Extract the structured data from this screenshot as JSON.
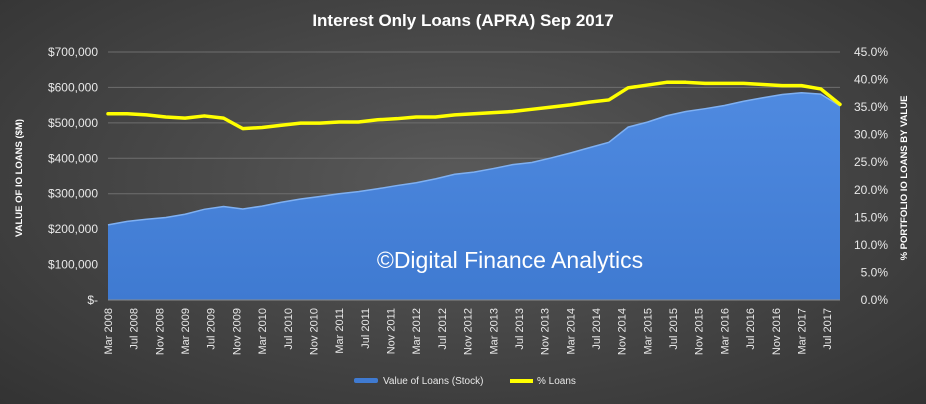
{
  "chart_data": {
    "type": "area+line",
    "title": "Interest Only Loans (APRA) Sep 2017",
    "ylabel_left": "VALUE OF IO LOANS ($M)",
    "ylabel_right": "% PORTFOLIO IO LOANS BY VALUE",
    "ylim_left": [
      0,
      700000
    ],
    "ylim_right": [
      0,
      45
    ],
    "left_ticks": [
      "$-",
      "$100,000",
      "$200,000",
      "$300,000",
      "$400,000",
      "$500,000",
      "$600,000",
      "$700,000"
    ],
    "right_ticks": [
      "0.0%",
      "5.0%",
      "10.0%",
      "15.0%",
      "20.0%",
      "25.0%",
      "30.0%",
      "35.0%",
      "40.0%",
      "45.0%"
    ],
    "x_tick_labels": [
      "Mar 2008",
      "Jul 2008",
      "Nov 2008",
      "Mar 2009",
      "Jul 2009",
      "Nov 2009",
      "Mar 2010",
      "Jul 2010",
      "Nov 2010",
      "Mar 2011",
      "Jul 2011",
      "Nov 2011",
      "Mar 2012",
      "Jul 2012",
      "Nov 2012",
      "Mar 2013",
      "Jul 2013",
      "Nov 2013",
      "Mar 2014",
      "Jul 2014",
      "Nov 2014",
      "Mar 2015",
      "Jul 2015",
      "Nov 2015",
      "Mar 2016",
      "Jul 2016",
      "Nov 2016",
      "Mar 2017",
      "Jul 2017"
    ],
    "x": [
      "2008-03",
      "2008-06",
      "2008-09",
      "2008-12",
      "2009-03",
      "2009-06",
      "2009-09",
      "2009-12",
      "2010-03",
      "2010-06",
      "2010-09",
      "2010-12",
      "2011-03",
      "2011-06",
      "2011-09",
      "2011-12",
      "2012-03",
      "2012-06",
      "2012-09",
      "2012-12",
      "2013-03",
      "2013-06",
      "2013-09",
      "2013-12",
      "2014-03",
      "2014-06",
      "2014-09",
      "2014-12",
      "2015-03",
      "2015-06",
      "2015-09",
      "2015-12",
      "2016-03",
      "2016-06",
      "2016-09",
      "2016-12",
      "2017-03",
      "2017-06",
      "2017-09"
    ],
    "series": [
      {
        "name": "Value of Loans (Stock)",
        "type": "area",
        "axis": "left",
        "color": "#3f7ad1",
        "values": [
          212000,
          222000,
          228000,
          233000,
          242000,
          256000,
          264000,
          257000,
          265000,
          276000,
          285000,
          292000,
          300000,
          306000,
          314000,
          323000,
          331000,
          342000,
          355000,
          361000,
          371000,
          382000,
          388000,
          401000,
          415000,
          430000,
          445000,
          488000,
          502000,
          520000,
          532000,
          540000,
          549000,
          561000,
          571000,
          580000,
          585000,
          581000,
          548000
        ]
      },
      {
        "name": "% Loans",
        "type": "line",
        "axis": "right",
        "color": "#ffff00",
        "values": [
          33.8,
          33.8,
          33.6,
          33.2,
          33.0,
          33.4,
          33.0,
          31.1,
          31.3,
          31.7,
          32.1,
          32.1,
          32.3,
          32.3,
          32.7,
          32.9,
          33.2,
          33.2,
          33.6,
          33.8,
          34.0,
          34.2,
          34.6,
          35.0,
          35.4,
          35.9,
          36.3,
          38.5,
          39.0,
          39.5,
          39.5,
          39.3,
          39.3,
          39.3,
          39.1,
          38.9,
          38.9,
          38.3,
          35.5
        ]
      }
    ],
    "legend_position": "bottom",
    "grid": "horizontal"
  },
  "watermark": "©Digital Finance Analytics"
}
